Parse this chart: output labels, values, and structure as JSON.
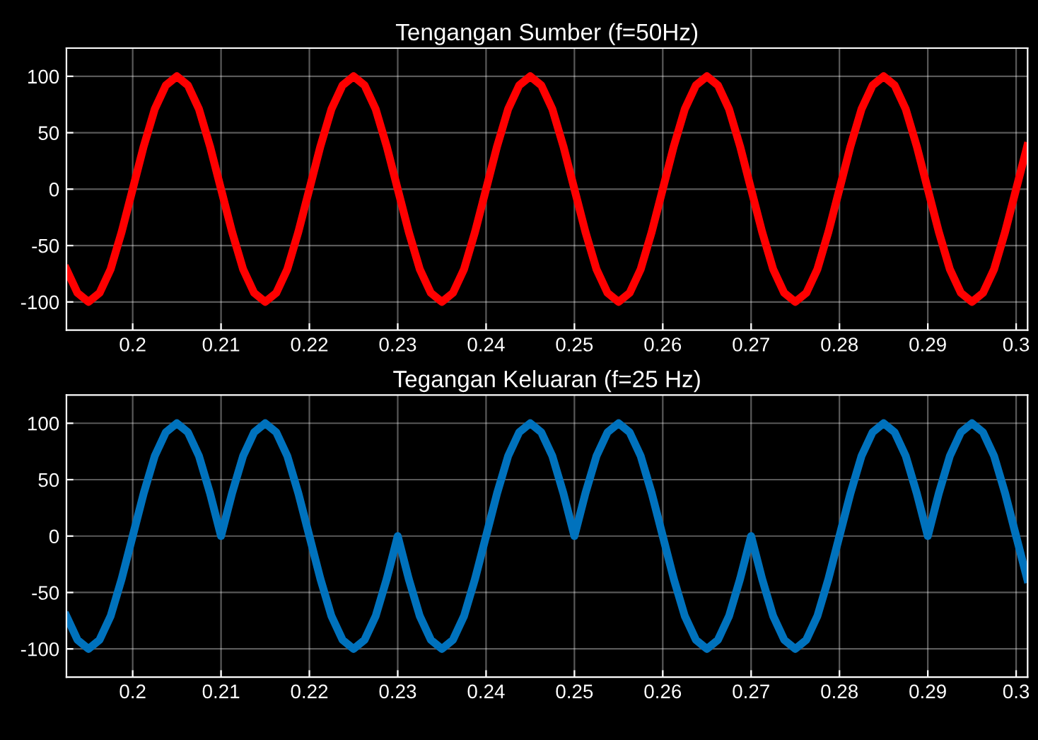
{
  "chart_data": [
    {
      "type": "line",
      "title": "Tengangan Sumber (f=50Hz)",
      "xlim": [
        0.1925,
        0.3013
      ],
      "ylim": [
        -125,
        125
      ],
      "xticks": [
        0.2,
        0.21,
        0.22,
        0.23,
        0.24,
        0.25,
        0.26,
        0.27,
        0.28,
        0.29,
        0.3
      ],
      "yticks": [
        -100,
        -50,
        0,
        50,
        100
      ],
      "grid": true,
      "marker": "none",
      "line_style": "solid",
      "x": [
        0.1925,
        0.19375,
        0.195,
        0.19625,
        0.1975,
        0.19875,
        0.2,
        0.20125,
        0.2025,
        0.20375,
        0.205,
        0.20625,
        0.2075,
        0.20875,
        0.21,
        0.21125,
        0.2125,
        0.21375,
        0.215,
        0.21625,
        0.2175,
        0.21875,
        0.22,
        0.22125,
        0.2225,
        0.22375,
        0.225,
        0.22625,
        0.2275,
        0.22875,
        0.23,
        0.23125,
        0.2325,
        0.23375,
        0.235,
        0.23625,
        0.2375,
        0.23875,
        0.24,
        0.24125,
        0.2425,
        0.24375,
        0.245,
        0.24625,
        0.2475,
        0.24875,
        0.25,
        0.25125,
        0.2525,
        0.25375,
        0.255,
        0.25625,
        0.2575,
        0.25875,
        0.26,
        0.26125,
        0.2625,
        0.26375,
        0.265,
        0.26625,
        0.2675,
        0.26875,
        0.27,
        0.27125,
        0.2725,
        0.27375,
        0.275,
        0.27625,
        0.2775,
        0.27875,
        0.28,
        0.28125,
        0.2825,
        0.28375,
        0.285,
        0.28625,
        0.2875,
        0.28875,
        0.29,
        0.29125,
        0.2925,
        0.29375,
        0.295,
        0.29625,
        0.2975,
        0.29875,
        0.3,
        0.30125
      ],
      "series": [
        {
          "color": "#ff0000",
          "values": [
            -71,
            -92,
            -100,
            -92,
            -71,
            -38,
            0,
            38,
            71,
            92,
            100,
            92,
            71,
            38,
            0,
            -38,
            -71,
            -92,
            -100,
            -92,
            -71,
            -38,
            0,
            38,
            71,
            92,
            100,
            92,
            71,
            38,
            0,
            -38,
            -71,
            -92,
            -100,
            -92,
            -71,
            -38,
            0,
            38,
            71,
            92,
            100,
            92,
            71,
            38,
            0,
            -38,
            -71,
            -92,
            -100,
            -92,
            -71,
            -38,
            0,
            38,
            71,
            92,
            100,
            92,
            71,
            38,
            0,
            -38,
            -71,
            -92,
            -100,
            -92,
            -71,
            -38,
            0,
            38,
            71,
            92,
            100,
            92,
            71,
            38,
            0,
            -38,
            -71,
            -92,
            -100,
            -92,
            -71,
            -38,
            0,
            38
          ]
        }
      ]
    },
    {
      "type": "line",
      "title": "Tegangan Keluaran (f=25 Hz)",
      "xlim": [
        0.1925,
        0.3013
      ],
      "ylim": [
        -125,
        125
      ],
      "xticks": [
        0.2,
        0.21,
        0.22,
        0.23,
        0.24,
        0.25,
        0.26,
        0.27,
        0.28,
        0.29,
        0.3
      ],
      "yticks": [
        -100,
        -50,
        0,
        50,
        100
      ],
      "grid": true,
      "marker": "none",
      "line_style": "solid",
      "x": [
        0.1925,
        0.19375,
        0.195,
        0.19625,
        0.1975,
        0.19875,
        0.2,
        0.20125,
        0.2025,
        0.20375,
        0.205,
        0.20625,
        0.2075,
        0.20875,
        0.21,
        0.21125,
        0.2125,
        0.21375,
        0.215,
        0.21625,
        0.2175,
        0.21875,
        0.22,
        0.22125,
        0.2225,
        0.22375,
        0.225,
        0.22625,
        0.2275,
        0.22875,
        0.23,
        0.23125,
        0.2325,
        0.23375,
        0.235,
        0.23625,
        0.2375,
        0.23875,
        0.24,
        0.24125,
        0.2425,
        0.24375,
        0.245,
        0.24625,
        0.2475,
        0.24875,
        0.25,
        0.25125,
        0.2525,
        0.25375,
        0.255,
        0.25625,
        0.2575,
        0.25875,
        0.26,
        0.26125,
        0.2625,
        0.26375,
        0.265,
        0.26625,
        0.2675,
        0.26875,
        0.27,
        0.27125,
        0.2725,
        0.27375,
        0.275,
        0.27625,
        0.2775,
        0.27875,
        0.28,
        0.28125,
        0.2825,
        0.28375,
        0.285,
        0.28625,
        0.2875,
        0.28875,
        0.29,
        0.29125,
        0.2925,
        0.29375,
        0.295,
        0.29625,
        0.2975,
        0.29875,
        0.3,
        0.30125
      ],
      "series": [
        {
          "color": "#0072bd",
          "values": [
            -71,
            -92,
            -100,
            -92,
            -71,
            -38,
            0,
            38,
            71,
            92,
            100,
            92,
            71,
            38,
            0,
            38,
            71,
            92,
            100,
            92,
            71,
            38,
            0,
            -38,
            -71,
            -92,
            -100,
            -92,
            -71,
            -38,
            0,
            -38,
            -71,
            -92,
            -100,
            -92,
            -71,
            -38,
            0,
            38,
            71,
            92,
            100,
            92,
            71,
            38,
            0,
            38,
            71,
            92,
            100,
            92,
            71,
            38,
            0,
            -38,
            -71,
            -92,
            -100,
            -92,
            -71,
            -38,
            0,
            -38,
            -71,
            -92,
            -100,
            -92,
            -71,
            -38,
            0,
            38,
            71,
            92,
            100,
            92,
            71,
            38,
            0,
            38,
            71,
            92,
            100,
            92,
            71,
            38,
            0,
            -38
          ]
        }
      ]
    }
  ]
}
